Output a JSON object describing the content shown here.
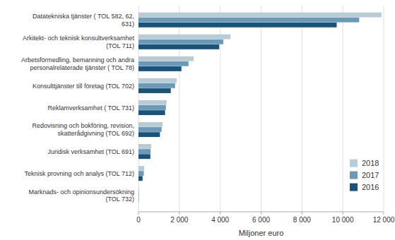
{
  "chart_data": {
    "type": "bar",
    "orientation": "horizontal",
    "categories": [
      "Marknads- och opinionsundersökning\n(TOL 732)",
      "Teknisk provning och analys (TOL 712)",
      "Juridisk verksamhet (TOL 691)",
      "Redovisning och bokföring, revision,\nskatterådgivning (TOL 692)",
      "Reklamverksamhet ( TOL 731)",
      "Konsulttjänster till företag (TOL 702)",
      "Arbetsförmedling, bemanning och andra\npersonalrelaterade tjänster ( TOL 78)",
      "Arkitekt- och teknisk konsultverksamhet\n(TOL 711)",
      "Datatekniska tjänster ( TOL 582, 62,\n631)"
    ],
    "series": [
      {
        "name": "2018",
        "color": "#b8ccd8",
        "values": [
          30,
          280,
          620,
          1180,
          1380,
          1870,
          2700,
          4500,
          11900
        ]
      },
      {
        "name": "2017",
        "color": "#6b9ab8",
        "values": [
          20,
          260,
          590,
          1130,
          1340,
          1790,
          2450,
          4150,
          10800
        ]
      },
      {
        "name": "2016",
        "color": "#1b5278",
        "values": [
          10,
          200,
          580,
          1050,
          1300,
          1580,
          2100,
          3950,
          9700
        ]
      }
    ],
    "xlabel": "Miljoner euro",
    "xlim": [
      0,
      12000
    ],
    "xticks": [
      0,
      {
        "value": 2000,
        "label": "2 000"
      },
      {
        "value": 4000,
        "label": "4 000"
      },
      {
        "value": 6000,
        "label": "6 000"
      },
      {
        "value": 8000,
        "label": "8 000"
      },
      {
        "value": 10000,
        "label": "10 000"
      },
      {
        "value": 12000,
        "label": "12 000"
      }
    ],
    "grid": true,
    "legend": "lower right"
  }
}
